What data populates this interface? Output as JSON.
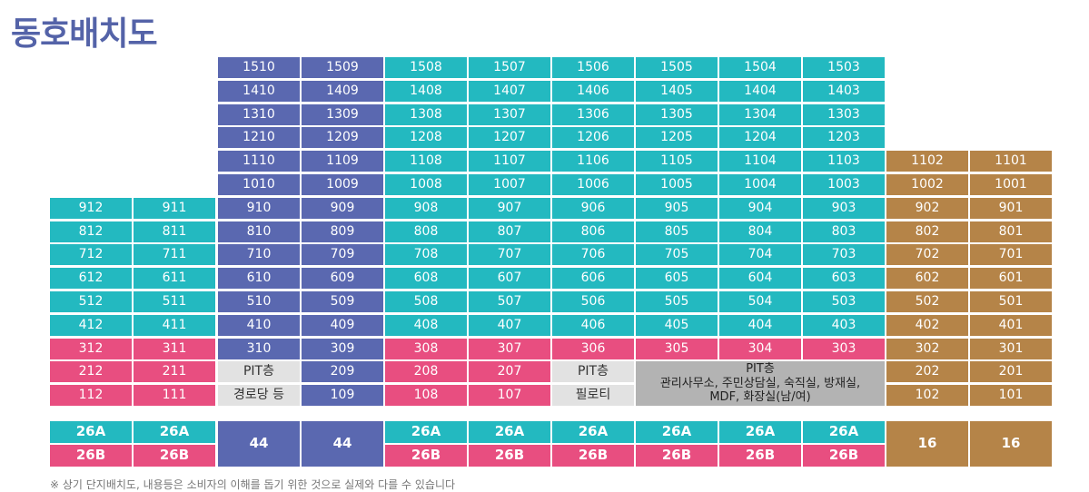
{
  "title": "동호배치도",
  "footnote": "※ 상기 단지배치도, 내용등은 소비자의 이해를 돕기 위한 것으로 실제와 다를 수 있습니다",
  "legend_colors": {
    "teal": "#23b9c0",
    "blue": "#5a68b0",
    "pink": "#e84e80",
    "gold": "#b58448",
    "light_gray": "#e2e2e2",
    "dark_gray": "#b3b3b3"
  },
  "units": [
    [
      "1510",
      "1509",
      "1508",
      "1507",
      "1506",
      "1505",
      "1504",
      "1503",
      null,
      null
    ],
    [
      "1410",
      "1409",
      "1408",
      "1407",
      "1406",
      "1405",
      "1404",
      "1403",
      null,
      null
    ],
    [
      "1310",
      "1309",
      "1308",
      "1307",
      "1306",
      "1305",
      "1304",
      "1303",
      null,
      null
    ],
    [
      "1210",
      "1209",
      "1208",
      "1207",
      "1206",
      "1205",
      "1204",
      "1203",
      null,
      null
    ],
    [
      "1110",
      "1109",
      "1108",
      "1107",
      "1106",
      "1105",
      "1104",
      "1103",
      "1102",
      "1101"
    ],
    [
      "1010",
      "1009",
      "1008",
      "1007",
      "1006",
      "1005",
      "1004",
      "1003",
      "1002",
      "1001"
    ],
    [
      "910",
      "909",
      "908",
      "907",
      "906",
      "905",
      "904",
      "903",
      "902",
      "901"
    ],
    [
      "810",
      "809",
      "808",
      "807",
      "806",
      "805",
      "804",
      "803",
      "802",
      "801"
    ],
    [
      "710",
      "709",
      "708",
      "707",
      "706",
      "705",
      "704",
      "703",
      "702",
      "701"
    ],
    [
      "610",
      "609",
      "608",
      "607",
      "606",
      "605",
      "604",
      "603",
      "602",
      "601"
    ],
    [
      "510",
      "509",
      "508",
      "507",
      "506",
      "505",
      "504",
      "503",
      "502",
      "501"
    ],
    [
      "410",
      "409",
      "408",
      "407",
      "406",
      "405",
      "404",
      "403",
      "402",
      "401"
    ],
    [
      "310",
      "309",
      "308",
      "307",
      "306",
      "305",
      "304",
      "303",
      "302",
      "301"
    ],
    [
      "PIT층",
      "209",
      "208",
      "207",
      "PIT층",
      null,
      null,
      null,
      "202",
      "201"
    ],
    [
      "경로당 등",
      "109",
      "108",
      "107",
      "필로티",
      null,
      null,
      null,
      "102",
      "101"
    ]
  ],
  "left_units": [
    [
      "912",
      "911"
    ],
    [
      "812",
      "811"
    ],
    [
      "712",
      "711"
    ],
    [
      "612",
      "611"
    ],
    [
      "512",
      "511"
    ],
    [
      "412",
      "411"
    ],
    [
      "312",
      "311"
    ],
    [
      "212",
      "211"
    ],
    [
      "112",
      "111"
    ]
  ],
  "facility": {
    "title": "PIT층",
    "lines": [
      "관리사무소, 주민상담실, 숙직실, 방재실,",
      "MDF, 화장실(남/여)"
    ]
  },
  "summary": {
    "row1": [
      "26A",
      "26A",
      "26A",
      "26A",
      "26A",
      "26A",
      "26A",
      "26A"
    ],
    "row2": [
      "26B",
      "26B",
      "26B",
      "26B",
      "26B",
      "26B",
      "26B",
      "26B"
    ],
    "blue_cols": [
      "44",
      "44"
    ],
    "gold_cols": [
      "16",
      "16"
    ]
  }
}
